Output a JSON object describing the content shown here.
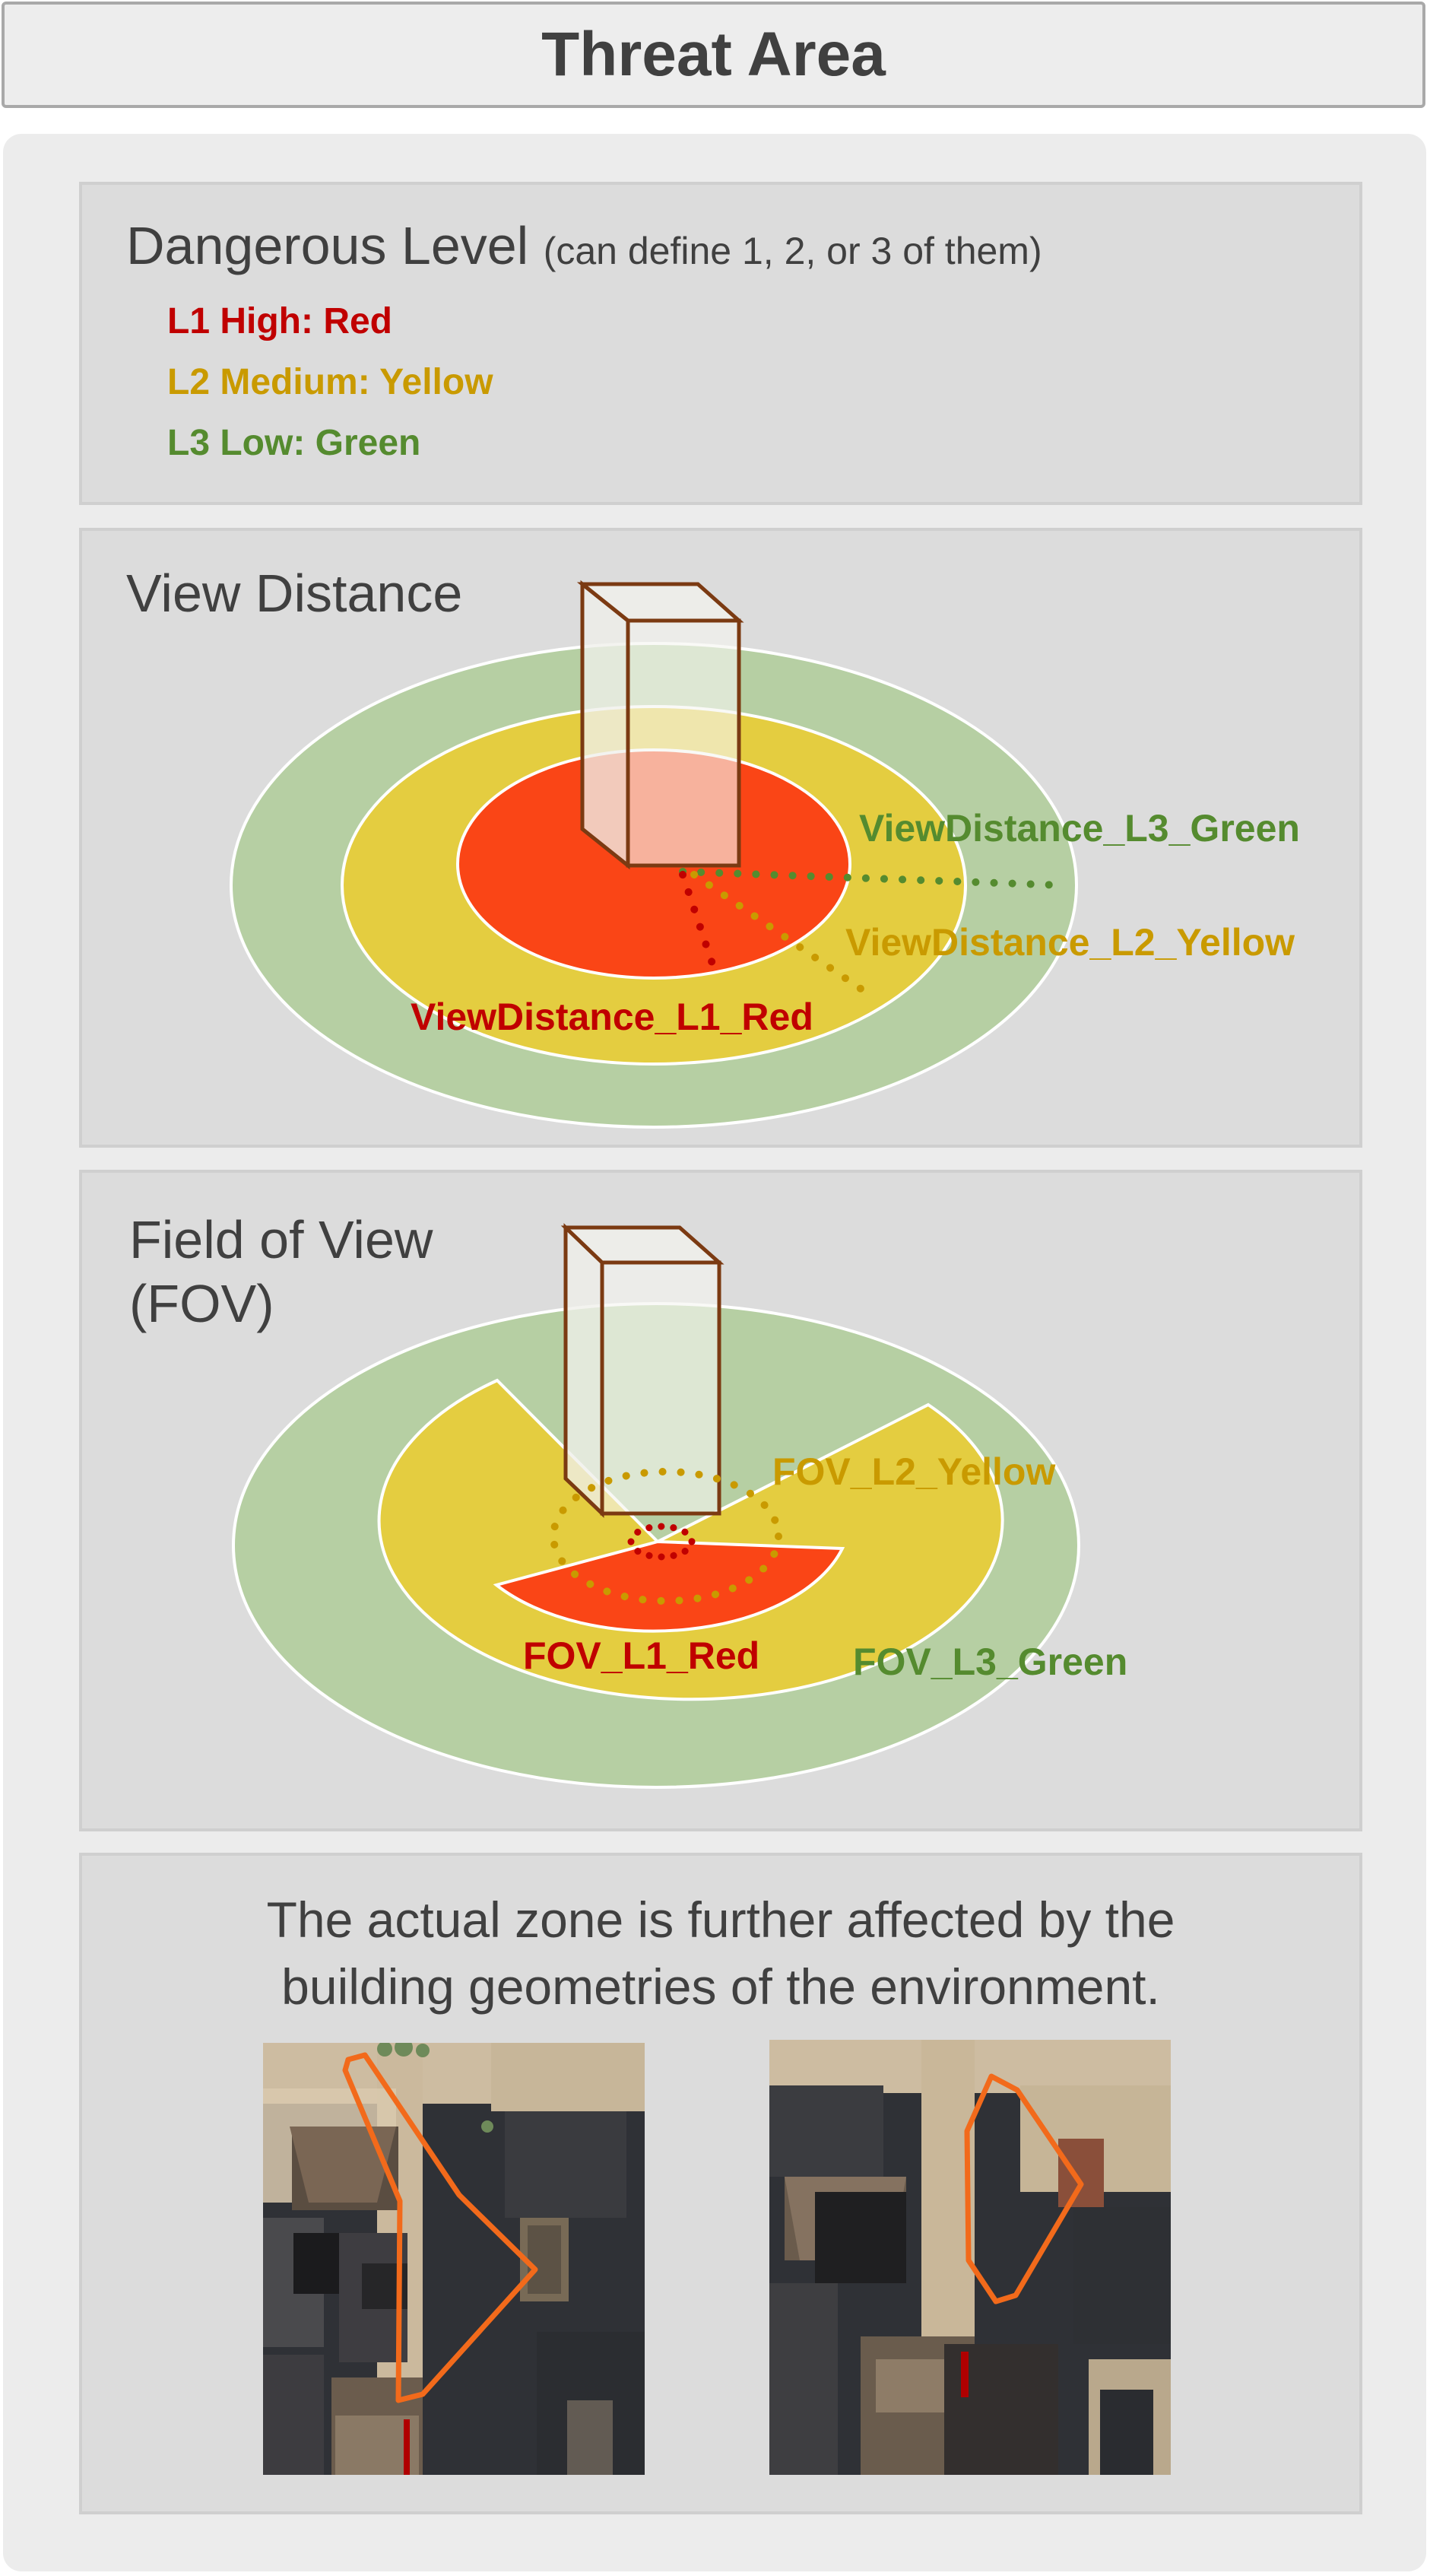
{
  "header": {
    "title": "Threat Area"
  },
  "colors": {
    "red": "#c00000",
    "yellow": "#c99a00",
    "green": "#558b2f",
    "zone_red": "#fa4516",
    "zone_yellow": "#e4cd40",
    "zone_green": "#b6cfa3",
    "outline_orange": "#f26a1b",
    "building_brown": "#7b3a12"
  },
  "dangerous_level": {
    "title": "Dangerous Level",
    "subtitle": "(can define 1, 2, or 3 of them)",
    "levels": [
      {
        "label": "L1 High: Red"
      },
      {
        "label": "L2 Medium: Yellow"
      },
      {
        "label": "L3 Low: Green"
      }
    ]
  },
  "view_distance": {
    "title": "View Distance",
    "labels": {
      "l3": "ViewDistance_L3_Green",
      "l2": "ViewDistance_L2_Yellow",
      "l1": "ViewDistance_L1_Red"
    }
  },
  "fov": {
    "title_line1": "Field of View",
    "title_line2": "(FOV)",
    "labels": {
      "l2": "FOV_L2_Yellow",
      "l1": "FOV_L1_Red",
      "l3": "FOV_L3_Green"
    }
  },
  "environment": {
    "caption_line1": "The actual zone is further affected by the",
    "caption_line2": "building geometries of the environment."
  }
}
